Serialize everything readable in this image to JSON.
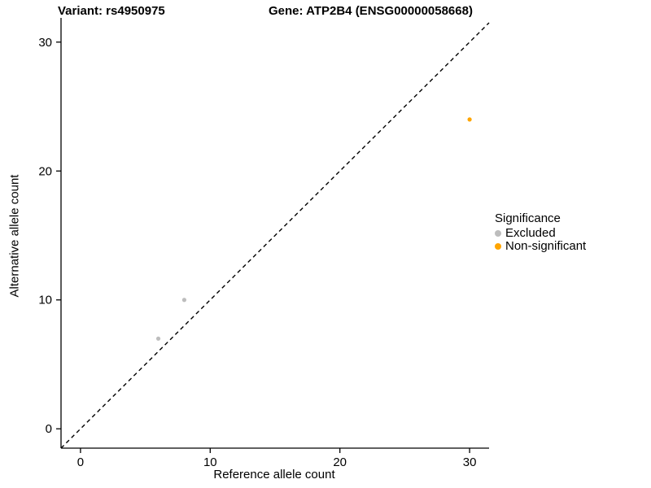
{
  "chart_data": {
    "type": "scatter",
    "title_left": "Variant: rs4950975",
    "title_right": "Gene: ATP2B4 (ENSG00000058668)",
    "xlabel": "Reference allele count",
    "ylabel": "Alternative allele count",
    "xlim": [
      -1.5,
      31.5
    ],
    "ylim": [
      -1.5,
      31.5
    ],
    "xticks": [
      0,
      10,
      20,
      30
    ],
    "yticks": [
      0,
      10,
      20,
      30
    ],
    "grid": false,
    "identity_line": {
      "style": "dashed",
      "from": [
        -1.5,
        -1.5
      ],
      "to": [
        31.5,
        31.5
      ]
    },
    "series": [
      {
        "name": "Excluded",
        "color": "#bdbdbd",
        "points": [
          [
            6,
            7
          ],
          [
            8,
            10
          ]
        ]
      },
      {
        "name": "Non-significant",
        "color": "#ffa500",
        "points": [
          [
            30,
            24
          ]
        ]
      }
    ],
    "legend": {
      "title": "Significance",
      "position": "right",
      "entries": [
        {
          "label": "Excluded",
          "color": "#bdbdbd"
        },
        {
          "label": "Non-significant",
          "color": "#ffa500"
        }
      ]
    }
  }
}
